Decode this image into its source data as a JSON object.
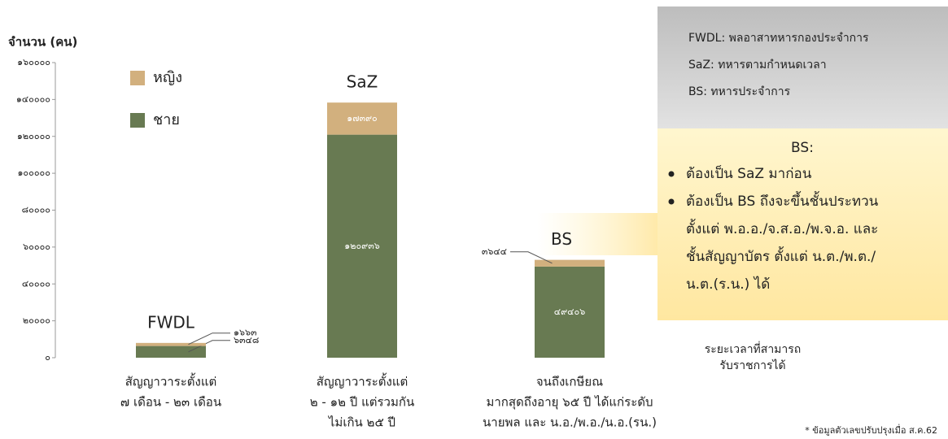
{
  "chart_data": {
    "type": "stacked_bar",
    "y_label": "จำนวน (คน)",
    "x_label": [
      "ระยะเวลาที่สามารถ",
      "รับราชการได้"
    ],
    "categories": [
      [
        "สัญญาวาระตั้งแต่",
        "๗ เดือน - ๒๓ เดือน"
      ],
      [
        "สัญญาวาระตั้งแต่",
        "๒ - ๑๒ ปี แต่รวมกัน",
        "ไม่เกิน ๒๕ ปี"
      ],
      [
        "จนถึงเกษียณ",
        "มากสุดถึงอายุ ๖๕ ปี ได้แก่ระดับ",
        "นายพล และ น.อ./พ.อ./น.อ.(รน.)"
      ]
    ],
    "bar_labels": [
      "FWDL",
      "SaZ",
      "BS"
    ],
    "series": [
      {
        "name": "ชาย",
        "color": "#687a52",
        "values": [
          6348,
          120936,
          49406
        ],
        "value_labels": [
          "๖๓๔๘",
          "๑๒๐๙๓๖",
          "๔๙๔๐๖"
        ]
      },
      {
        "name": "หญิง",
        "color": "#d2b07e",
        "values": [
          1663,
          17390,
          3644
        ],
        "value_labels": [
          "๑๖๖๓",
          "๑๗๓๙๐",
          "๓๖๔๔"
        ]
      }
    ],
    "ylim": [
      0,
      160000
    ],
    "yticks": [
      {
        "value": 0,
        "label": "๐"
      },
      {
        "value": 20000,
        "label": "๒๐๐๐๐"
      },
      {
        "value": 40000,
        "label": "๔๐๐๐๐"
      },
      {
        "value": 60000,
        "label": "๖๐๐๐๐"
      },
      {
        "value": 80000,
        "label": "๘๐๐๐๐"
      },
      {
        "value": 100000,
        "label": "๑๐๐๐๐๐"
      },
      {
        "value": 120000,
        "label": "๑๒๐๐๐๐"
      },
      {
        "value": 140000,
        "label": "๑๔๐๐๐๐"
      },
      {
        "value": 160000,
        "label": "๑๖๐๐๐๐"
      }
    ],
    "definitions": [
      "FWDL: พลอาสาทหารกองประจำการ",
      "SaZ: ทหารตามกำหนดเวลา",
      "BS: ทหารประจำการ"
    ],
    "note_title": "BS:",
    "note_bullets": [
      [
        "ต้องเป็น SaZ มาก่อน"
      ],
      [
        "ต้องเป็น BS ถึงจะขึ้นชั้นประทวน",
        "ตั้งแต่ พ.อ.อ./จ.ส.อ./พ.จ.อ. และ",
        "ชั้นสัญญาบัตร ตั้งแต่ น.ต./พ.ต./",
        "น.ต.(ร.น.) ได้"
      ]
    ],
    "footnote": "* ข้อมูลตัวเลขปรับปรุงเมื่อ ส.ค.62"
  }
}
